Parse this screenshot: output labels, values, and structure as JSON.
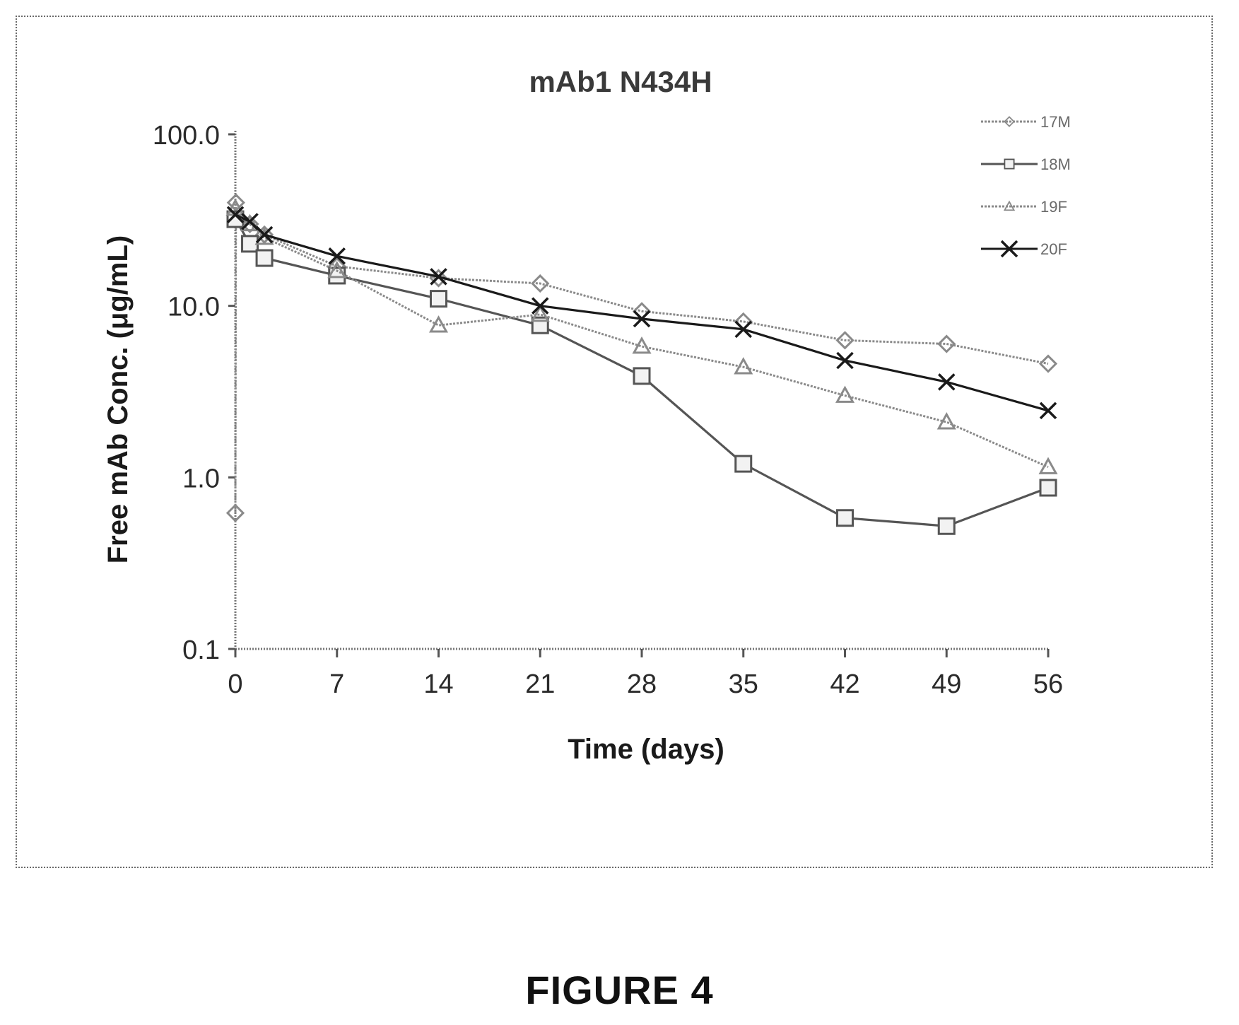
{
  "figure_label": "FIGURE 4",
  "chart_data": {
    "type": "line",
    "title": "mAb1 N434H",
    "xlabel": "Time (days)",
    "ylabel": "Free mAb Conc. (μg/mL)",
    "xlim": [
      0,
      56
    ],
    "ylim": [
      0.1,
      100
    ],
    "yscale": "log",
    "x_ticks": [
      0,
      7,
      14,
      21,
      28,
      35,
      42,
      49,
      56
    ],
    "x_tick_labels": [
      "0",
      "7",
      "14",
      "21",
      "28",
      "35",
      "42",
      "49",
      "56"
    ],
    "y_ticks": [
      0.1,
      1,
      10,
      100
    ],
    "y_tick_labels": [
      "0.1",
      "1.0",
      "10.0",
      "100.0"
    ],
    "grid": false,
    "legend_position": "top-right",
    "series": [
      {
        "name": "17M",
        "marker": "diamond",
        "color": "#8a8a8a",
        "line_style": "dotted",
        "points": [
          [
            0,
            0.62
          ],
          [
            0.04,
            40
          ],
          [
            1,
            30
          ],
          [
            2,
            26
          ],
          [
            7,
            17
          ],
          [
            14,
            14.5
          ],
          [
            21,
            13.5
          ],
          [
            28,
            9.3
          ],
          [
            35,
            8.1
          ],
          [
            42,
            6.3
          ],
          [
            49,
            6.0
          ],
          [
            56,
            4.6
          ]
        ]
      },
      {
        "name": "18M",
        "marker": "square",
        "color": "#555555",
        "line_style": "solid",
        "points": [
          [
            0,
            32
          ],
          [
            1,
            23
          ],
          [
            2,
            19
          ],
          [
            7,
            15
          ],
          [
            14,
            11
          ],
          [
            21,
            7.7
          ],
          [
            28,
            3.9
          ],
          [
            35,
            1.2
          ],
          [
            42,
            0.58
          ],
          [
            49,
            0.52
          ],
          [
            56,
            0.87
          ]
        ]
      },
      {
        "name": "19F",
        "marker": "triangle",
        "color": "#8a8a8a",
        "line_style": "dotted",
        "points": [
          [
            0,
            37
          ],
          [
            1,
            30
          ],
          [
            2,
            25
          ],
          [
            7,
            16
          ],
          [
            14,
            7.7
          ],
          [
            21,
            8.9
          ],
          [
            28,
            5.8
          ],
          [
            35,
            4.4
          ],
          [
            42,
            3.0
          ],
          [
            49,
            2.1
          ],
          [
            56,
            1.15
          ]
        ]
      },
      {
        "name": "20F",
        "marker": "x",
        "color": "#1a1a1a",
        "line_style": "solid",
        "points": [
          [
            0,
            34
          ],
          [
            1,
            31
          ],
          [
            2,
            26
          ],
          [
            7,
            19.5
          ],
          [
            14,
            14.8
          ],
          [
            21,
            10.0
          ],
          [
            28,
            8.4
          ],
          [
            35,
            7.3
          ],
          [
            42,
            4.8
          ],
          [
            49,
            3.6
          ],
          [
            56,
            2.45
          ]
        ]
      }
    ]
  }
}
